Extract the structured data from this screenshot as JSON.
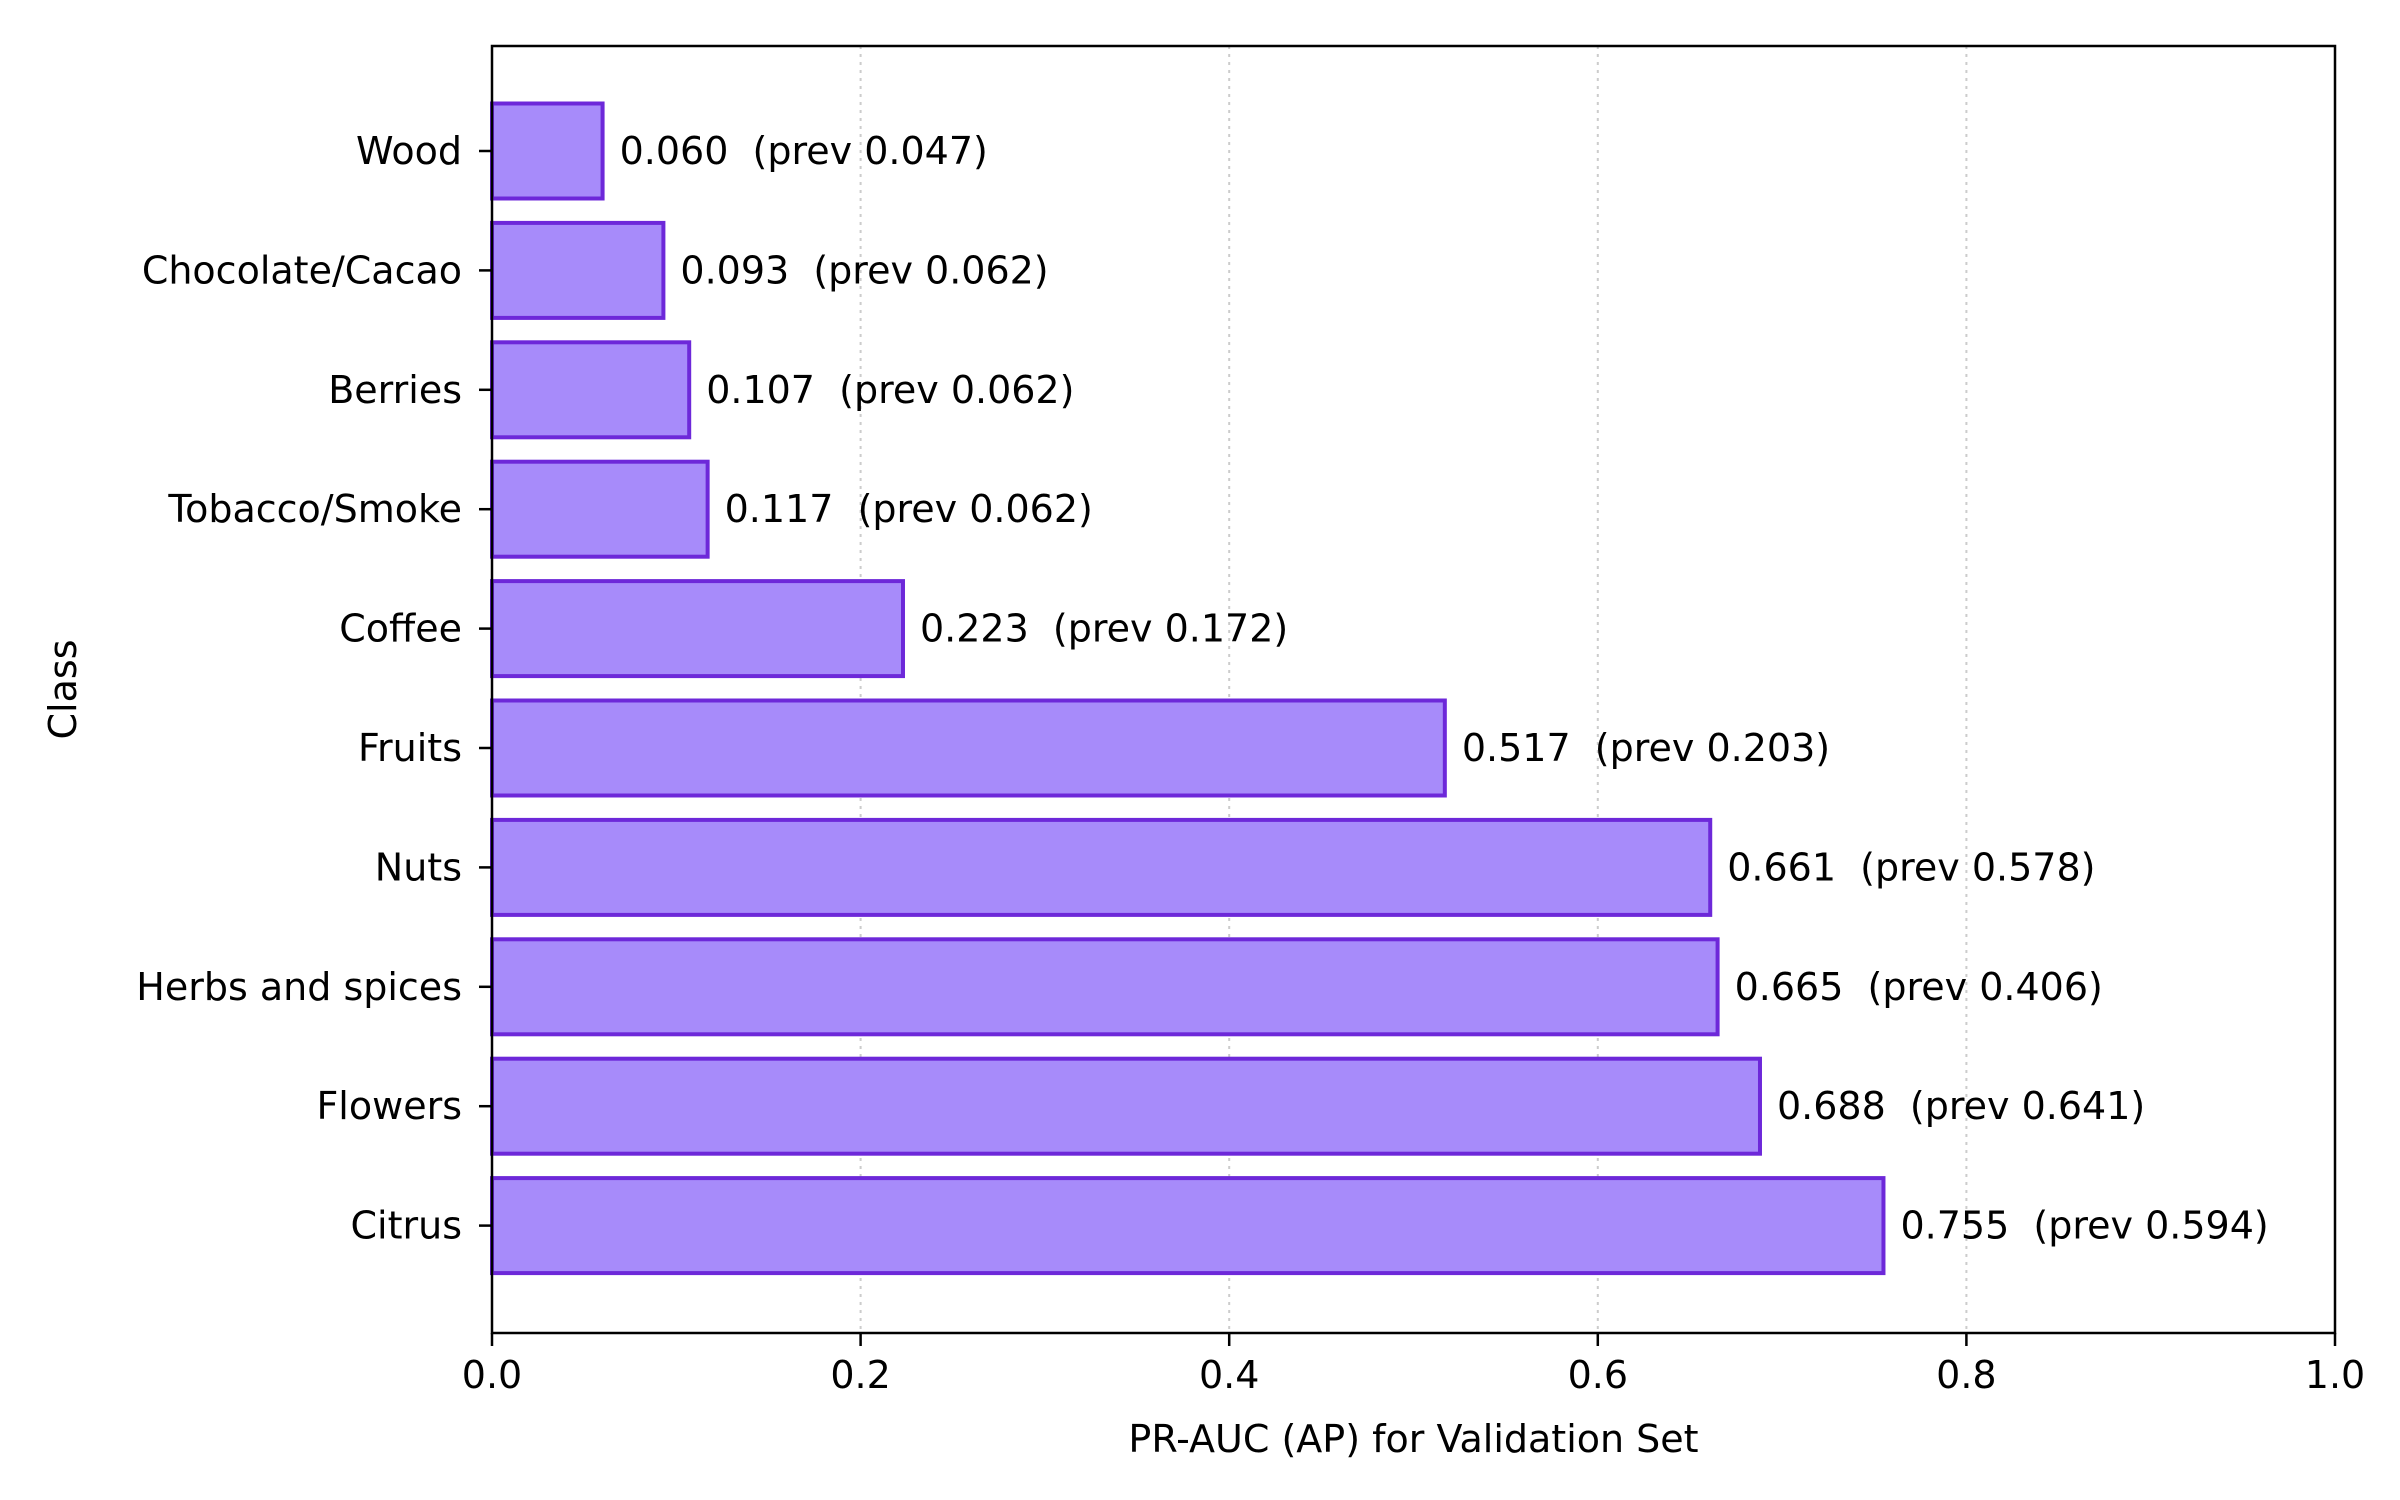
{
  "chart_data": {
    "type": "bar",
    "orientation": "horizontal",
    "categories": [
      "Wood",
      "Chocolate/Cacao",
      "Berries",
      "Tobacco/Smoke",
      "Coffee",
      "Fruits",
      "Nuts",
      "Herbs and spices",
      "Flowers",
      "Citrus"
    ],
    "values": [
      0.06,
      0.093,
      0.107,
      0.117,
      0.223,
      0.517,
      0.661,
      0.665,
      0.688,
      0.755
    ],
    "previous_values": [
      0.047,
      0.062,
      0.062,
      0.062,
      0.172,
      0.203,
      0.578,
      0.406,
      0.641,
      0.594
    ],
    "data_labels": [
      "0.060  (prev 0.047)",
      "0.093  (prev 0.062)",
      "0.107  (prev 0.062)",
      "0.117  (prev 0.062)",
      "0.223  (prev 0.172)",
      "0.517  (prev 0.203)",
      "0.661  (prev 0.578)",
      "0.665  (prev 0.406)",
      "0.688  (prev 0.641)",
      "0.755  (prev 0.594)"
    ],
    "xlabel": "PR-AUC (AP) for Validation Set",
    "ylabel": "Class",
    "xlim": [
      0,
      1
    ],
    "xticks": [
      0.0,
      0.2,
      0.4,
      0.6,
      0.8,
      1.0
    ],
    "xtick_labels": [
      "0.0",
      "0.2",
      "0.4",
      "0.6",
      "0.8",
      "1.0"
    ],
    "grid": "x-axis dotted",
    "colors": {
      "bar_fill": "#a78bfa",
      "bar_edge": "#6d28d9",
      "grid": "#cccccc",
      "axis": "#000000"
    }
  }
}
